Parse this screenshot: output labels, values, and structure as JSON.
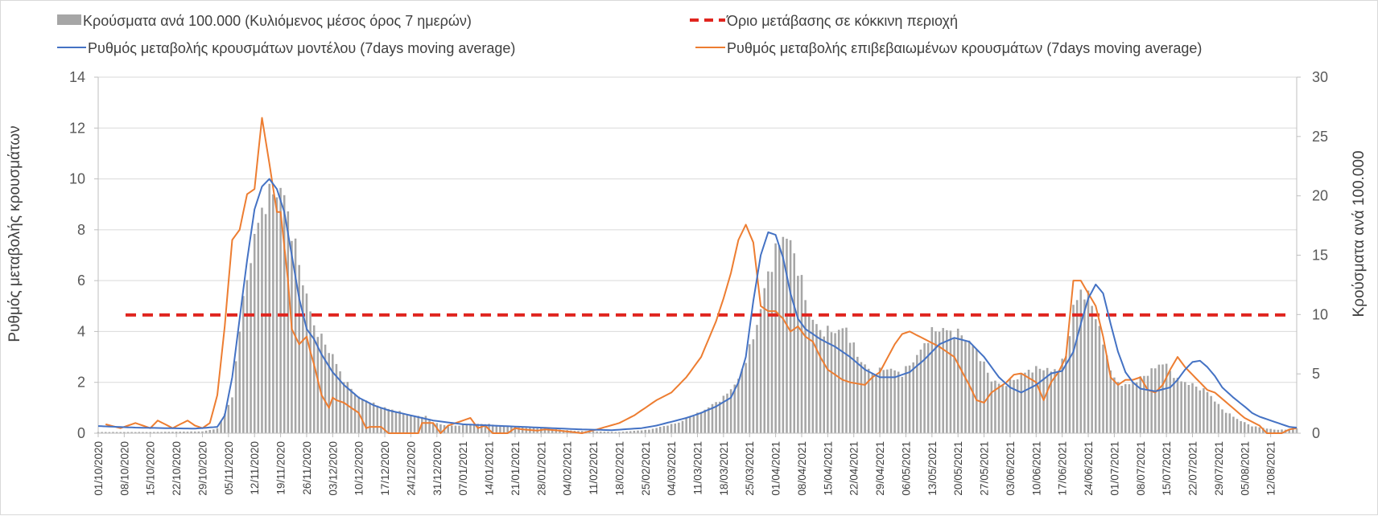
{
  "chart_data": {
    "type": "bar+line",
    "legend": {
      "bars": "Κρούσματα ανά 100.000 (Κυλιόμενος μέσος όρος 7 ημερών)",
      "threshold": "Όριο μετάβασης σε κόκκινη περιοχή",
      "model": "Ρυθμός μεταβολής κρουσμάτων μοντέλου (7days moving average)",
      "confirmed": "Ρυθμός μεταβολής επιβεβαιωμένων κρουσμάτων (7days moving average)"
    },
    "left_axis": {
      "title": "Ρυθμός μεταβολής κρουσμάτων",
      "min": 0,
      "max": 14,
      "ticks": [
        "0",
        "2",
        "4",
        "6",
        "8",
        "10",
        "12",
        "14"
      ]
    },
    "right_axis": {
      "title": "Κρούσματα ανά 100.000",
      "min": 0,
      "max": 30,
      "ticks": [
        "0",
        "5",
        "10",
        "15",
        "20",
        "25",
        "30"
      ]
    },
    "x_labels": [
      "01/10/2020",
      "08/10/2020",
      "15/10/2020",
      "22/10/2020",
      "29/10/2020",
      "05/11/2020",
      "12/11/2020",
      "19/11/2020",
      "26/11/2020",
      "03/12/2020",
      "10/12/2020",
      "17/12/2020",
      "24/12/2020",
      "31/12/2020",
      "07/01/2021",
      "14/01/2021",
      "21/01/2021",
      "28/01/2021",
      "04/02/2021",
      "11/02/2021",
      "18/02/2021",
      "25/02/2021",
      "04/03/2021",
      "11/03/2021",
      "18/03/2021",
      "25/03/2021",
      "01/04/2021",
      "08/04/2021",
      "15/04/2021",
      "22/04/2021",
      "29/04/2021",
      "06/05/2021",
      "13/05/2021",
      "20/05/2021",
      "27/05/2021",
      "03/06/2021",
      "10/06/2021",
      "17/06/2021",
      "24/06/2021",
      "01/07/2021",
      "08/07/2021",
      "15/07/2021",
      "22/07/2021",
      "29/07/2021",
      "05/08/2021",
      "12/08/2021"
    ],
    "days": 323,
    "threshold_value": 4.65,
    "bars_knots": [
      [
        0,
        0.1
      ],
      [
        14,
        0.1
      ],
      [
        28,
        0.15
      ],
      [
        32,
        0.4
      ],
      [
        36,
        3.0
      ],
      [
        38,
        9.0
      ],
      [
        40,
        13.0
      ],
      [
        42,
        16.5
      ],
      [
        44,
        18.8
      ],
      [
        46,
        20.0
      ],
      [
        48,
        20.5
      ],
      [
        50,
        20.0
      ],
      [
        52,
        17.0
      ],
      [
        56,
        11.5
      ],
      [
        58,
        9.0
      ],
      [
        60,
        8.0
      ],
      [
        63,
        6.5
      ],
      [
        66,
        4.5
      ],
      [
        70,
        3.0
      ],
      [
        76,
        2.2
      ],
      [
        80,
        1.9
      ],
      [
        84,
        1.5
      ],
      [
        88,
        1.4
      ],
      [
        90,
        0.9
      ],
      [
        94,
        0.6
      ],
      [
        104,
        0.8
      ],
      [
        112,
        0.5
      ],
      [
        120,
        0.4
      ],
      [
        128,
        0.2
      ],
      [
        140,
        0.1
      ],
      [
        148,
        0.3
      ],
      [
        156,
        0.9
      ],
      [
        162,
        1.8
      ],
      [
        168,
        3.0
      ],
      [
        172,
        4.5
      ],
      [
        176,
        8.0
      ],
      [
        178,
        10.5
      ],
      [
        180,
        13.5
      ],
      [
        182,
        15.2
      ],
      [
        184,
        16.8
      ],
      [
        186,
        16.0
      ],
      [
        188,
        14.0
      ],
      [
        191,
        10.0
      ],
      [
        194,
        8.6
      ],
      [
        198,
        8.6
      ],
      [
        201,
        8.8
      ],
      [
        204,
        6.5
      ],
      [
        208,
        5.0
      ],
      [
        212,
        5.5
      ],
      [
        216,
        5.0
      ],
      [
        220,
        6.5
      ],
      [
        224,
        8.5
      ],
      [
        226,
        8.8
      ],
      [
        232,
        8.3
      ],
      [
        236,
        7.0
      ],
      [
        240,
        4.5
      ],
      [
        243,
        4.0
      ],
      [
        246,
        4.5
      ],
      [
        250,
        5.3
      ],
      [
        254,
        5.5
      ],
      [
        256,
        5.2
      ],
      [
        258,
        5.5
      ],
      [
        260,
        6.5
      ],
      [
        262,
        10.5
      ],
      [
        264,
        12.0
      ],
      [
        266,
        11.5
      ],
      [
        268,
        10.0
      ],
      [
        270,
        7.5
      ],
      [
        273,
        4.5
      ],
      [
        276,
        4.0
      ],
      [
        280,
        4.6
      ],
      [
        284,
        5.5
      ],
      [
        286,
        6.0
      ],
      [
        290,
        4.5
      ],
      [
        293,
        4.2
      ],
      [
        298,
        3.5
      ],
      [
        302,
        2.0
      ],
      [
        306,
        1.2
      ],
      [
        310,
        0.6
      ],
      [
        316,
        0.3
      ],
      [
        320,
        0.3
      ],
      [
        322,
        0.4
      ]
    ],
    "model_knots": [
      [
        0,
        0.28
      ],
      [
        10,
        0.22
      ],
      [
        18,
        0.2
      ],
      [
        26,
        0.18
      ],
      [
        32,
        0.25
      ],
      [
        34,
        0.7
      ],
      [
        36,
        2.2
      ],
      [
        38,
        4.5
      ],
      [
        40,
        6.8
      ],
      [
        42,
        8.8
      ],
      [
        44,
        9.7
      ],
      [
        46,
        10.0
      ],
      [
        48,
        9.6
      ],
      [
        50,
        8.7
      ],
      [
        52,
        7.0
      ],
      [
        54,
        5.3
      ],
      [
        56,
        4.1
      ],
      [
        58,
        3.7
      ],
      [
        60,
        3.1
      ],
      [
        63,
        2.4
      ],
      [
        66,
        1.9
      ],
      [
        70,
        1.4
      ],
      [
        74,
        1.1
      ],
      [
        78,
        0.9
      ],
      [
        84,
        0.7
      ],
      [
        90,
        0.5
      ],
      [
        98,
        0.35
      ],
      [
        106,
        0.3
      ],
      [
        114,
        0.25
      ],
      [
        122,
        0.2
      ],
      [
        130,
        0.15
      ],
      [
        138,
        0.12
      ],
      [
        146,
        0.2
      ],
      [
        150,
        0.3
      ],
      [
        154,
        0.45
      ],
      [
        158,
        0.6
      ],
      [
        162,
        0.8
      ],
      [
        166,
        1.05
      ],
      [
        170,
        1.4
      ],
      [
        172,
        2.0
      ],
      [
        174,
        3.0
      ],
      [
        176,
        5.2
      ],
      [
        178,
        7.0
      ],
      [
        180,
        7.9
      ],
      [
        182,
        7.8
      ],
      [
        184,
        6.9
      ],
      [
        186,
        5.5
      ],
      [
        188,
        4.5
      ],
      [
        190,
        4.1
      ],
      [
        194,
        3.7
      ],
      [
        198,
        3.4
      ],
      [
        202,
        3.0
      ],
      [
        206,
        2.5
      ],
      [
        210,
        2.2
      ],
      [
        214,
        2.2
      ],
      [
        218,
        2.4
      ],
      [
        222,
        2.9
      ],
      [
        226,
        3.5
      ],
      [
        230,
        3.75
      ],
      [
        234,
        3.6
      ],
      [
        238,
        3.0
      ],
      [
        242,
        2.2
      ],
      [
        245,
        1.8
      ],
      [
        248,
        1.6
      ],
      [
        252,
        1.9
      ],
      [
        256,
        2.35
      ],
      [
        259,
        2.45
      ],
      [
        262,
        3.2
      ],
      [
        264,
        4.3
      ],
      [
        266,
        5.3
      ],
      [
        268,
        5.85
      ],
      [
        270,
        5.5
      ],
      [
        272,
        4.3
      ],
      [
        274,
        3.2
      ],
      [
        276,
        2.4
      ],
      [
        278,
        2.0
      ],
      [
        280,
        1.75
      ],
      [
        284,
        1.65
      ],
      [
        288,
        1.8
      ],
      [
        290,
        2.1
      ],
      [
        292,
        2.5
      ],
      [
        294,
        2.8
      ],
      [
        296,
        2.85
      ],
      [
        298,
        2.6
      ],
      [
        300,
        2.25
      ],
      [
        302,
        1.8
      ],
      [
        305,
        1.4
      ],
      [
        308,
        1.05
      ],
      [
        310,
        0.8
      ],
      [
        312,
        0.65
      ],
      [
        315,
        0.5
      ],
      [
        318,
        0.35
      ],
      [
        320,
        0.25
      ],
      [
        322,
        0.22
      ]
    ],
    "confirmed_knots": [
      [
        2,
        0.35
      ],
      [
        6,
        0.2
      ],
      [
        10,
        0.4
      ],
      [
        14,
        0.2
      ],
      [
        16,
        0.5
      ],
      [
        20,
        0.2
      ],
      [
        22,
        0.35
      ],
      [
        24,
        0.5
      ],
      [
        26,
        0.3
      ],
      [
        28,
        0.2
      ],
      [
        30,
        0.4
      ],
      [
        32,
        1.5
      ],
      [
        34,
        4.2
      ],
      [
        36,
        7.6
      ],
      [
        38,
        8.0
      ],
      [
        40,
        9.4
      ],
      [
        42,
        9.6
      ],
      [
        44,
        12.4
      ],
      [
        46,
        10.6
      ],
      [
        48,
        8.7
      ],
      [
        49,
        8.7
      ],
      [
        51,
        6.0
      ],
      [
        52,
        4.1
      ],
      [
        54,
        3.5
      ],
      [
        56,
        3.8
      ],
      [
        57,
        3.2
      ],
      [
        58,
        2.7
      ],
      [
        59,
        2.1
      ],
      [
        60,
        1.5
      ],
      [
        62,
        1.0
      ],
      [
        63,
        1.4
      ],
      [
        64,
        1.3
      ],
      [
        66,
        1.2
      ],
      [
        68,
        1.0
      ],
      [
        70,
        0.8
      ],
      [
        72,
        0.2
      ],
      [
        73,
        0.25
      ],
      [
        76,
        0.25
      ],
      [
        78,
        0.0
      ],
      [
        86,
        0.0
      ],
      [
        87,
        0.4
      ],
      [
        90,
        0.4
      ],
      [
        92,
        0.0
      ],
      [
        94,
        0.3
      ],
      [
        98,
        0.5
      ],
      [
        100,
        0.6
      ],
      [
        102,
        0.2
      ],
      [
        104,
        0.3
      ],
      [
        106,
        0.0
      ],
      [
        110,
        0.0
      ],
      [
        112,
        0.2
      ],
      [
        114,
        0.15
      ],
      [
        118,
        0.1
      ],
      [
        120,
        0.15
      ],
      [
        124,
        0.1
      ],
      [
        130,
        0.0
      ],
      [
        134,
        0.15
      ],
      [
        140,
        0.4
      ],
      [
        144,
        0.7
      ],
      [
        148,
        1.1
      ],
      [
        150,
        1.3
      ],
      [
        154,
        1.6
      ],
      [
        158,
        2.2
      ],
      [
        160,
        2.6
      ],
      [
        162,
        3.0
      ],
      [
        164,
        3.7
      ],
      [
        166,
        4.4
      ],
      [
        168,
        5.3
      ],
      [
        170,
        6.3
      ],
      [
        172,
        7.6
      ],
      [
        174,
        8.2
      ],
      [
        176,
        7.5
      ],
      [
        178,
        5.0
      ],
      [
        180,
        4.8
      ],
      [
        182,
        4.8
      ],
      [
        184,
        4.5
      ],
      [
        186,
        4.0
      ],
      [
        188,
        4.2
      ],
      [
        190,
        3.8
      ],
      [
        192,
        3.6
      ],
      [
        194,
        3.0
      ],
      [
        196,
        2.5
      ],
      [
        198,
        2.3
      ],
      [
        200,
        2.1
      ],
      [
        202,
        2.0
      ],
      [
        206,
        1.9
      ],
      [
        208,
        2.2
      ],
      [
        210,
        2.4
      ],
      [
        214,
        3.5
      ],
      [
        216,
        3.9
      ],
      [
        218,
        4.0
      ],
      [
        222,
        3.7
      ],
      [
        226,
        3.4
      ],
      [
        228,
        3.2
      ],
      [
        230,
        3.0
      ],
      [
        234,
        1.9
      ],
      [
        236,
        1.3
      ],
      [
        238,
        1.2
      ],
      [
        240,
        1.6
      ],
      [
        244,
        2.0
      ],
      [
        246,
        2.3
      ],
      [
        248,
        2.35
      ],
      [
        252,
        2.0
      ],
      [
        254,
        1.3
      ],
      [
        256,
        2.0
      ],
      [
        258,
        2.4
      ],
      [
        260,
        3.0
      ],
      [
        262,
        6.0
      ],
      [
        264,
        6.0
      ],
      [
        266,
        5.5
      ],
      [
        268,
        5.0
      ],
      [
        270,
        3.8
      ],
      [
        272,
        2.2
      ],
      [
        274,
        1.9
      ],
      [
        276,
        2.1
      ],
      [
        278,
        2.1
      ],
      [
        280,
        2.2
      ],
      [
        282,
        1.7
      ],
      [
        284,
        1.6
      ],
      [
        286,
        1.9
      ],
      [
        288,
        2.5
      ],
      [
        290,
        3.0
      ],
      [
        292,
        2.6
      ],
      [
        294,
        2.3
      ],
      [
        296,
        2.0
      ],
      [
        298,
        1.7
      ],
      [
        300,
        1.6
      ],
      [
        304,
        1.1
      ],
      [
        308,
        0.6
      ],
      [
        312,
        0.3
      ],
      [
        314,
        0.0
      ],
      [
        318,
        0.0
      ],
      [
        320,
        0.15
      ],
      [
        322,
        0.2
      ]
    ]
  }
}
